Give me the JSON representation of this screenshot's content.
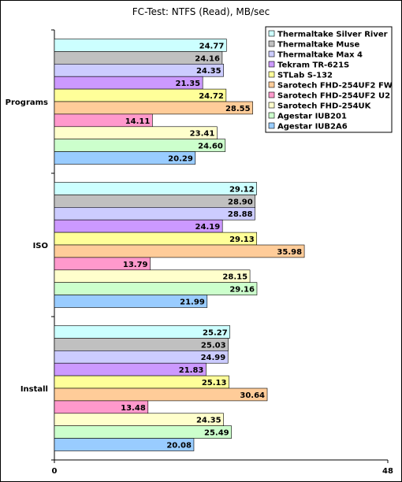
{
  "chart_data": {
    "type": "bar",
    "orientation": "horizontal",
    "title": "FC-Test: NTFS (Read),  MB/sec",
    "xlabel": "",
    "ylabel": "",
    "xlim": [
      0,
      48
    ],
    "x_ticks": [
      "0",
      "48"
    ],
    "legend_placement": "top-right",
    "categories": [
      "Programs",
      "ISO",
      "Install"
    ],
    "series": [
      {
        "name": "Thermaltake Silver River",
        "color": "#ccffff",
        "values": [
          24.77,
          29.12,
          25.27
        ]
      },
      {
        "name": "Thermaltake Muse",
        "color": "#c0c0c0",
        "values": [
          24.16,
          28.9,
          25.03
        ]
      },
      {
        "name": "Thermaltake Max 4",
        "color": "#ccccff",
        "values": [
          24.35,
          28.88,
          24.99
        ]
      },
      {
        "name": "Tekram TR-621S",
        "color": "#cc99ff",
        "values": [
          21.35,
          24.19,
          21.83
        ]
      },
      {
        "name": "STLab S-132",
        "color": "#ffff99",
        "values": [
          24.72,
          29.13,
          25.13
        ]
      },
      {
        "name": "Sarotech FHD-254UF2 FW",
        "color": "#ffcc99",
        "values": [
          28.55,
          35.98,
          30.64
        ]
      },
      {
        "name": "Sarotech FHD-254UF2 U2",
        "color": "#ff99cc",
        "values": [
          14.11,
          13.79,
          13.48
        ]
      },
      {
        "name": "Sarotech FHD-254UK",
        "color": "#ffffcc",
        "values": [
          23.41,
          28.15,
          24.35
        ]
      },
      {
        "name": "Agestar IUB201",
        "color": "#ccffcc",
        "values": [
          24.6,
          29.16,
          25.49
        ]
      },
      {
        "name": "Agestar IUB2A6",
        "color": "#99ccff",
        "values": [
          20.29,
          21.99,
          20.08
        ]
      }
    ]
  }
}
